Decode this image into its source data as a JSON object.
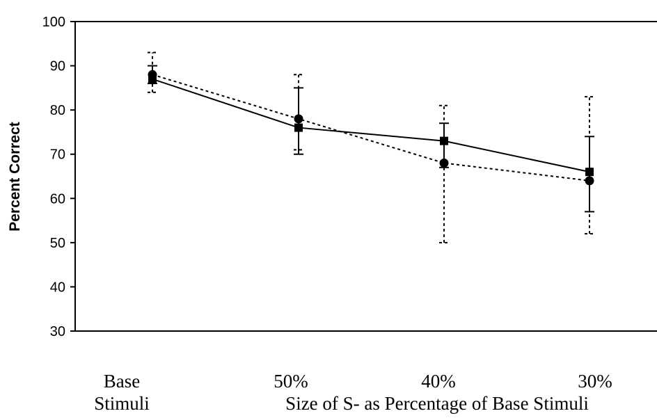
{
  "chart_data": {
    "type": "line",
    "ylabel": "Percent Correct",
    "xlabel": "Size of S- as Percentage of Base Stimuli",
    "ylim": [
      30,
      100
    ],
    "yticks": [
      "30",
      "40",
      "50",
      "60",
      "70",
      "80",
      "90",
      "100"
    ],
    "categories": [
      "Base",
      "50%",
      "40%",
      "30%"
    ],
    "category_sublabel": "Stimuli",
    "grid": false,
    "series": [
      {
        "marker": "square",
        "line_style": "solid",
        "color": "#000000",
        "values": [
          87,
          76,
          73,
          66
        ],
        "error_low": [
          86,
          70,
          67,
          57
        ],
        "error_high": [
          90,
          85,
          77,
          74
        ]
      },
      {
        "marker": "circle",
        "line_style": "dashed",
        "color": "#000000",
        "values": [
          88,
          78,
          68,
          64
        ],
        "error_low": [
          84,
          71,
          50,
          52
        ],
        "error_high": [
          93,
          88,
          81,
          83
        ]
      }
    ]
  }
}
